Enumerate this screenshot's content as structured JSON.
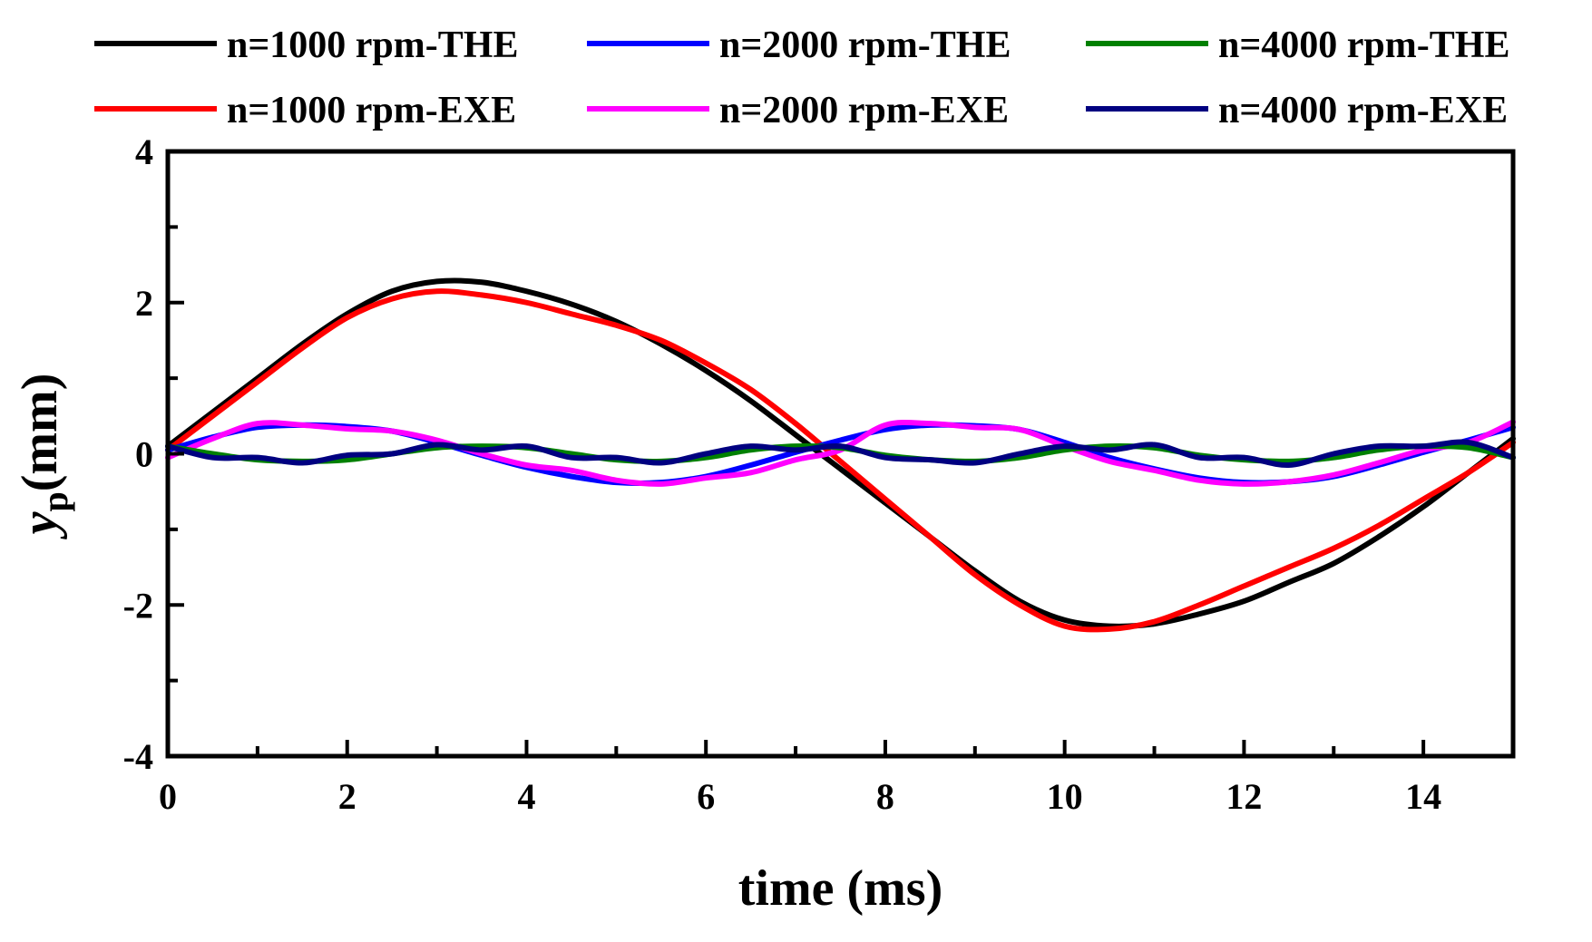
{
  "chart_data": {
    "type": "line",
    "title": "",
    "xlabel": "time (ms)",
    "ylabel_main": "y",
    "ylabel_sub": "p",
    "ylabel_unit": "(mm)",
    "xlim": [
      0,
      15
    ],
    "ylim": [
      -4,
      4
    ],
    "xticks": [
      0,
      2,
      4,
      6,
      8,
      10,
      12,
      14
    ],
    "xtick_labels": [
      "0",
      "2",
      "4",
      "6",
      "8",
      "10",
      "12",
      "14"
    ],
    "yticks": [
      -4,
      -2,
      0,
      2,
      4
    ],
    "ytick_labels": [
      "-4",
      "-2",
      "0",
      "2",
      "4"
    ],
    "grid": false,
    "legend_position": "top",
    "series": [
      {
        "name": "n=1000 rpm-THE",
        "color": "#000000",
        "x": [
          0,
          0.5,
          1,
          1.5,
          2,
          2.5,
          3,
          3.5,
          4,
          4.5,
          5,
          5.5,
          6,
          6.5,
          7,
          7.5,
          8,
          8.5,
          9,
          9.5,
          10,
          10.5,
          11,
          11.5,
          12,
          12.5,
          13,
          13.5,
          14,
          14.5,
          15
        ],
        "y": [
          0.1,
          0.55,
          1.0,
          1.45,
          1.85,
          2.15,
          2.28,
          2.27,
          2.15,
          1.98,
          1.75,
          1.45,
          1.1,
          0.7,
          0.25,
          -0.2,
          -0.65,
          -1.1,
          -1.55,
          -1.95,
          -2.2,
          -2.28,
          -2.25,
          -2.12,
          -1.95,
          -1.7,
          -1.45,
          -1.1,
          -0.7,
          -0.25,
          0.2
        ]
      },
      {
        "name": "n=1000 rpm-EXE",
        "color": "#ff0000",
        "x": [
          0,
          0.5,
          1,
          1.5,
          2,
          2.5,
          3,
          3.5,
          4,
          4.5,
          5,
          5.5,
          6,
          6.5,
          7,
          7.5,
          8,
          8.5,
          9,
          9.5,
          10,
          10.5,
          11,
          11.5,
          12,
          12.5,
          13,
          13.5,
          14,
          14.5,
          15
        ],
        "y": [
          0.05,
          0.5,
          0.95,
          1.4,
          1.8,
          2.05,
          2.15,
          2.1,
          2.0,
          1.85,
          1.7,
          1.5,
          1.2,
          0.85,
          0.4,
          -0.1,
          -0.6,
          -1.1,
          -1.6,
          -2.0,
          -2.28,
          -2.32,
          -2.22,
          -2.0,
          -1.75,
          -1.5,
          -1.25,
          -0.95,
          -0.6,
          -0.25,
          0.15
        ]
      },
      {
        "name": "n=2000 rpm-THE",
        "color": "#0000ff",
        "x": [
          0,
          0.5,
          1,
          1.5,
          2,
          2.5,
          3,
          3.5,
          4,
          4.5,
          5,
          5.5,
          6,
          6.5,
          7,
          7.5,
          8,
          8.5,
          9,
          9.5,
          10,
          10.5,
          11,
          11.5,
          12,
          12.5,
          13,
          13.5,
          14,
          14.5,
          15
        ],
        "y": [
          0.05,
          0.22,
          0.35,
          0.38,
          0.36,
          0.3,
          0.15,
          -0.02,
          -0.18,
          -0.3,
          -0.38,
          -0.38,
          -0.3,
          -0.15,
          0.02,
          0.18,
          0.32,
          0.38,
          0.37,
          0.32,
          0.15,
          -0.05,
          -0.2,
          -0.32,
          -0.38,
          -0.37,
          -0.3,
          -0.15,
          0.02,
          0.18,
          0.35
        ]
      },
      {
        "name": "n=2000 rpm-EXE",
        "color": "#ff00ff",
        "x": [
          0,
          0.5,
          1,
          1.5,
          2,
          2.5,
          3,
          3.5,
          4,
          4.5,
          5,
          5.5,
          6,
          6.5,
          7,
          7.5,
          8,
          8.5,
          9,
          9.5,
          10,
          10.5,
          11,
          11.5,
          12,
          12.5,
          13,
          13.5,
          14,
          14.5,
          15
        ],
        "y": [
          -0.05,
          0.2,
          0.4,
          0.38,
          0.33,
          0.3,
          0.18,
          0.0,
          -0.15,
          -0.22,
          -0.35,
          -0.4,
          -0.32,
          -0.25,
          -0.08,
          0.05,
          0.38,
          0.4,
          0.35,
          0.32,
          0.1,
          -0.1,
          -0.22,
          -0.35,
          -0.4,
          -0.37,
          -0.28,
          -0.12,
          0.05,
          0.15,
          0.42
        ]
      },
      {
        "name": "n=4000 rpm-THE",
        "color": "#008000",
        "x": [
          0,
          0.5,
          1,
          1.5,
          2,
          2.5,
          3,
          3.5,
          4,
          4.5,
          5,
          5.5,
          6,
          6.5,
          7,
          7.5,
          8,
          8.5,
          9,
          9.5,
          10,
          10.5,
          11,
          11.5,
          12,
          12.5,
          13,
          13.5,
          14,
          14.5,
          15
        ],
        "y": [
          0.1,
          0.0,
          -0.08,
          -0.1,
          -0.08,
          0.0,
          0.08,
          0.1,
          0.08,
          0.0,
          -0.08,
          -0.1,
          -0.05,
          0.05,
          0.1,
          0.08,
          -0.02,
          -0.08,
          -0.1,
          -0.05,
          0.05,
          0.1,
          0.08,
          -0.02,
          -0.08,
          -0.1,
          -0.05,
          0.05,
          0.1,
          0.08,
          -0.05
        ]
      },
      {
        "name": "n=4000 rpm-EXE",
        "color": "#000080",
        "x": [
          0,
          0.5,
          1,
          1.5,
          2,
          2.5,
          3,
          3.5,
          4,
          4.5,
          5,
          5.5,
          6,
          6.5,
          7,
          7.5,
          8,
          8.5,
          9,
          9.5,
          10,
          10.5,
          11,
          11.5,
          12,
          12.5,
          13,
          13.5,
          14,
          14.5,
          15
        ],
        "y": [
          0.1,
          -0.05,
          -0.05,
          -0.12,
          -0.02,
          0.0,
          0.12,
          0.05,
          0.1,
          -0.05,
          -0.05,
          -0.12,
          0.0,
          0.1,
          0.05,
          0.1,
          -0.05,
          -0.08,
          -0.12,
          0.0,
          0.1,
          0.05,
          0.12,
          -0.05,
          -0.05,
          -0.15,
          0.0,
          0.1,
          0.1,
          0.15,
          -0.05
        ]
      }
    ],
    "legend_order": [
      0,
      2,
      4,
      1,
      3,
      5
    ]
  }
}
